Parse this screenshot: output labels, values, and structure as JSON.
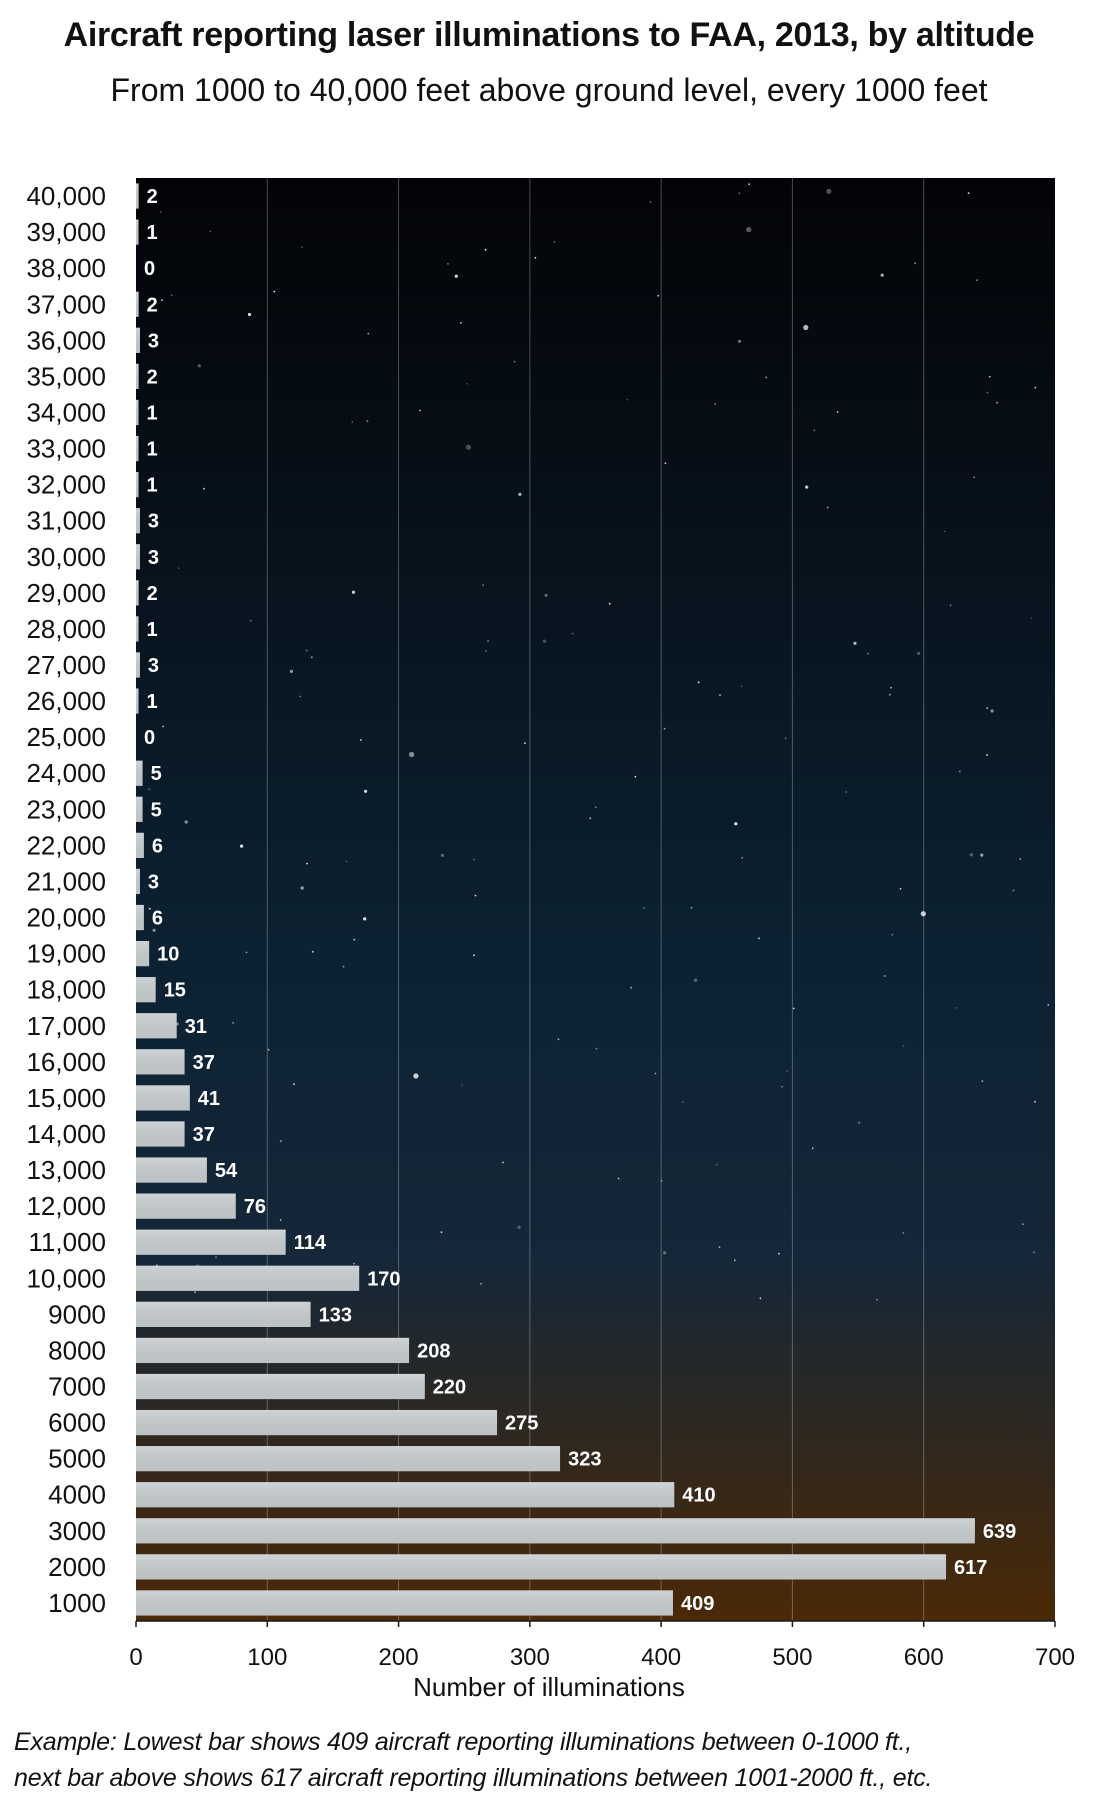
{
  "chart_data": {
    "type": "bar",
    "orientation": "horizontal",
    "title": "Aircraft reporting laser illuminations to FAA, 2013, by altitude",
    "subtitle": "From 1000 to 40,000 feet above ground level, every 1000 feet",
    "xlabel": "Number of illuminations",
    "ylabel": "",
    "xlim": [
      0,
      700
    ],
    "xticks": [
      "0",
      "100",
      "200",
      "300",
      "400",
      "500",
      "600",
      "700"
    ],
    "categories": [
      "1000",
      "2000",
      "3000",
      "4000",
      "5000",
      "6000",
      "7000",
      "8000",
      "9000",
      "10,000",
      "11,000",
      "12,000",
      "13,000",
      "14,000",
      "15,000",
      "16,000",
      "17,000",
      "18,000",
      "19,000",
      "20,000",
      "21,000",
      "22,000",
      "23,000",
      "24,000",
      "25,000",
      "26,000",
      "27,000",
      "28,000",
      "29,000",
      "30,000",
      "31,000",
      "32,000",
      "33,000",
      "34,000",
      "35,000",
      "36,000",
      "37,000",
      "38,000",
      "39,000",
      "40,000"
    ],
    "values": [
      409,
      617,
      639,
      410,
      323,
      275,
      220,
      208,
      133,
      170,
      114,
      76,
      54,
      37,
      41,
      37,
      31,
      15,
      10,
      6,
      3,
      6,
      5,
      5,
      0,
      1,
      3,
      1,
      2,
      3,
      3,
      1,
      1,
      1,
      2,
      3,
      2,
      0,
      1,
      2
    ],
    "grid": "vertical",
    "legend": "none",
    "colors": {
      "sky_top": "#030407",
      "sky_mid": "#0c2233",
      "sky_bottom": "#4a2906",
      "bar_fill": "#c8cdd0",
      "value_label": "#ffffff"
    }
  },
  "footnote": {
    "line1": "Example:   Lowest bar shows 409 aircraft reporting illuminations between 0-1000 ft.,",
    "line2": "next bar above shows 617 aircraft reporting illuminations between 1001-2000 ft., etc."
  }
}
